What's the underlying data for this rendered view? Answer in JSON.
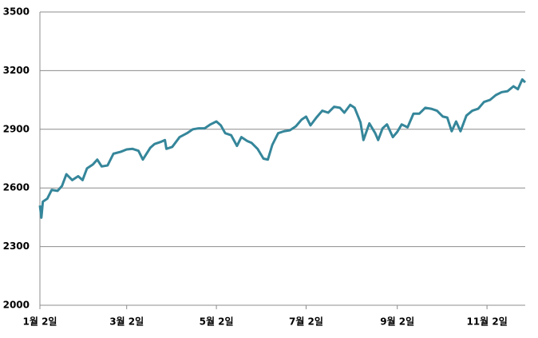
{
  "chart_data": {
    "type": "line",
    "x": [
      0,
      1,
      2,
      5,
      8,
      12,
      15,
      18,
      22,
      26,
      29,
      32,
      36,
      39,
      42,
      46,
      50,
      55,
      59,
      63,
      67,
      70,
      75,
      78,
      82,
      85,
      86,
      90,
      95,
      100,
      104,
      108,
      112,
      116,
      120,
      123,
      126,
      130,
      134,
      137,
      141,
      144,
      148,
      152,
      155,
      158,
      162,
      166,
      170,
      174,
      178,
      181,
      184,
      188,
      192,
      196,
      200,
      204,
      207,
      211,
      214,
      218,
      220,
      224,
      228,
      230,
      233,
      236,
      240,
      243,
      246,
      250,
      254,
      258,
      262,
      266,
      270,
      274,
      277,
      280,
      283,
      286,
      290,
      294,
      298,
      302,
      306,
      310,
      314,
      318,
      322,
      325,
      328,
      330
    ],
    "series": [
      {
        "color": "#35869a",
        "values": [
          2510,
          2448,
          2530,
          2545,
          2590,
          2585,
          2610,
          2670,
          2640,
          2660,
          2640,
          2700,
          2720,
          2745,
          2710,
          2715,
          2775,
          2785,
          2797,
          2800,
          2790,
          2745,
          2805,
          2825,
          2835,
          2845,
          2800,
          2810,
          2860,
          2880,
          2900,
          2905,
          2905,
          2925,
          2940,
          2920,
          2880,
          2870,
          2815,
          2860,
          2840,
          2830,
          2800,
          2750,
          2745,
          2820,
          2880,
          2890,
          2895,
          2915,
          2950,
          2965,
          2920,
          2960,
          2995,
          2985,
          3015,
          3010,
          2985,
          3025,
          3010,
          2935,
          2845,
          2930,
          2880,
          2845,
          2905,
          2925,
          2860,
          2887,
          2925,
          2910,
          2980,
          2980,
          3010,
          3005,
          2995,
          2965,
          2960,
          2890,
          2940,
          2890,
          2970,
          2995,
          3005,
          3040,
          3050,
          3075,
          3090,
          3095,
          3120,
          3105,
          3155,
          3140
        ]
      }
    ],
    "xlim": [
      0,
      330
    ],
    "xticks": [
      {
        "value": 0,
        "label": "1월 2일"
      },
      {
        "value": 59,
        "label": "3월 2일"
      },
      {
        "value": 120,
        "label": "5월 2일"
      },
      {
        "value": 181,
        "label": "7월 2일"
      },
      {
        "value": 243,
        "label": "9월 2일"
      },
      {
        "value": 304,
        "label": "11월 2일"
      }
    ],
    "ylim": [
      2000,
      3500
    ],
    "yticks": [
      2000,
      2300,
      2600,
      2900,
      3200,
      3500
    ],
    "grid": true
  }
}
